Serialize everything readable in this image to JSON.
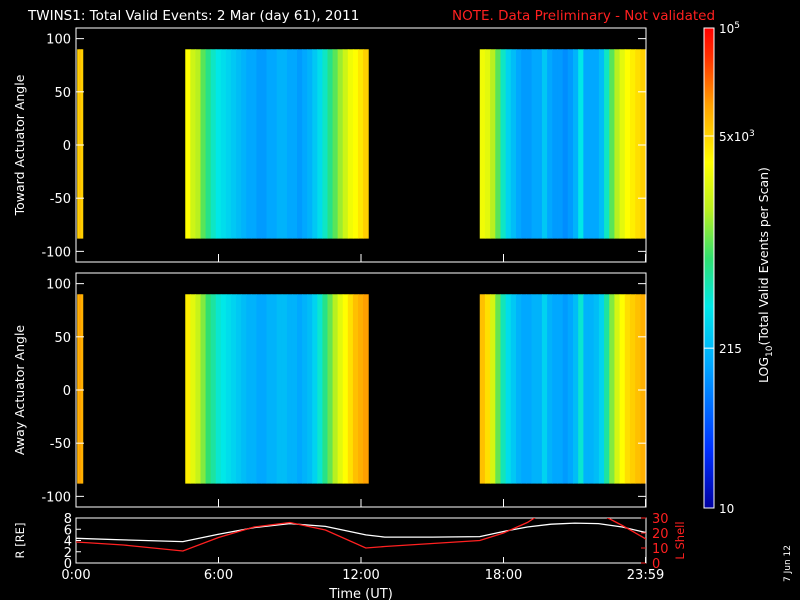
{
  "header": {
    "title": "TWINS1: Total Valid Events:  2 Mar (day  61), 2011",
    "note": "NOTE. Data Preliminary - Not validated"
  },
  "footer": {
    "date_stamp": "7 Jun 12"
  },
  "colors": {
    "note_red": "#ff2020",
    "lshell_red": "#ff2020",
    "r_line": "#ffffff",
    "background": "#000000"
  },
  "chart_data": [
    {
      "type": "heatmap",
      "id": "toward",
      "ylabel": "Toward Actuator Angle",
      "xlim": [
        0,
        24
      ],
      "ylim": [
        -110,
        110
      ],
      "yticks": [
        100,
        50,
        0,
        -50,
        -100
      ],
      "angle_range": [
        -88,
        90
      ],
      "time_blocks": [
        {
          "start": 0.05,
          "end": 0.28,
          "levels": [
            0.78,
            0.8,
            0.78
          ]
        },
        {
          "start": 4.6,
          "end": 12.3,
          "levels": [
            0.72,
            0.65,
            0.62,
            0.55,
            0.5,
            0.45,
            0.42,
            0.4,
            0.38,
            0.36,
            0.34,
            0.32,
            0.3,
            0.3,
            0.28,
            0.28,
            0.3,
            0.3,
            0.32,
            0.32,
            0.3,
            0.3,
            0.28,
            0.3,
            0.32,
            0.36,
            0.4,
            0.45,
            0.5,
            0.55,
            0.6,
            0.65,
            0.7,
            0.72,
            0.75,
            0.78
          ]
        },
        {
          "start": 17.0,
          "end": 23.98,
          "levels": [
            0.7,
            0.68,
            0.62,
            0.55,
            0.45,
            0.38,
            0.34,
            0.3,
            0.28,
            0.28,
            0.3,
            0.3,
            0.36,
            0.3,
            0.28,
            0.28,
            0.26,
            0.28,
            0.32,
            0.42,
            0.3,
            0.3,
            0.3,
            0.34,
            0.45,
            0.55,
            0.62,
            0.68,
            0.72,
            0.74,
            0.76,
            0.78
          ]
        }
      ]
    },
    {
      "type": "heatmap",
      "id": "away",
      "ylabel": "Away Actuator Angle",
      "xlim": [
        0,
        24
      ],
      "ylim": [
        -110,
        110
      ],
      "yticks": [
        100,
        50,
        0,
        -50,
        -100
      ],
      "angle_range": [
        -88,
        90
      ],
      "time_blocks": [
        {
          "start": 0.05,
          "end": 0.28,
          "levels": [
            0.82,
            0.84,
            0.82
          ]
        },
        {
          "start": 4.6,
          "end": 12.3,
          "levels": [
            0.74,
            0.68,
            0.64,
            0.58,
            0.52,
            0.48,
            0.44,
            0.42,
            0.4,
            0.38,
            0.36,
            0.34,
            0.32,
            0.32,
            0.3,
            0.3,
            0.32,
            0.32,
            0.34,
            0.34,
            0.32,
            0.32,
            0.3,
            0.32,
            0.34,
            0.38,
            0.44,
            0.5,
            0.56,
            0.62,
            0.68,
            0.72,
            0.76,
            0.8,
            0.82,
            0.84
          ]
        },
        {
          "start": 17.0,
          "end": 23.98,
          "levels": [
            0.8,
            0.76,
            0.66,
            0.56,
            0.46,
            0.4,
            0.36,
            0.32,
            0.3,
            0.3,
            0.32,
            0.32,
            0.38,
            0.32,
            0.3,
            0.3,
            0.28,
            0.3,
            0.34,
            0.44,
            0.32,
            0.32,
            0.34,
            0.38,
            0.48,
            0.58,
            0.66,
            0.72,
            0.76,
            0.78,
            0.8,
            0.82
          ]
        }
      ]
    },
    {
      "type": "line",
      "id": "orbit",
      "ylabel_left": "R [RE]",
      "ylabel_right": "L Shell",
      "xlabel": "Time (UT)",
      "xlim": [
        0,
        24
      ],
      "ylim_left": [
        0,
        8
      ],
      "ylim_right": [
        0,
        30
      ],
      "yticks_left": [
        0,
        2,
        4,
        6,
        8
      ],
      "yticks_right": [
        0,
        10,
        20,
        30
      ],
      "xtick_labels": [
        "0:00",
        "6:00",
        "12:00",
        "18:00",
        "23:59"
      ],
      "xticks": [
        0,
        6,
        12,
        18,
        23.98
      ],
      "series": [
        {
          "name": "R [RE]",
          "axis": "left",
          "x": [
            0,
            2,
            4.5,
            6,
            7.5,
            9,
            10.5,
            12.2,
            13,
            15,
            17,
            18,
            19,
            20,
            21,
            22,
            23,
            24
          ],
          "y": [
            4.4,
            4.1,
            3.8,
            5.1,
            6.3,
            7.0,
            6.5,
            5.0,
            4.6,
            4.6,
            4.7,
            5.6,
            6.4,
            6.9,
            7.1,
            7.0,
            6.4,
            5.4
          ]
        },
        {
          "name": "L Shell",
          "axis": "right",
          "x": [
            0,
            2,
            4.5,
            6,
            7.5,
            9,
            10.5,
            12.2,
            13,
            15,
            17,
            18,
            19,
            19.5,
            19.8
          ],
          "y": [
            14,
            12,
            8,
            17,
            24,
            27,
            22,
            10,
            11,
            13,
            15,
            20,
            27,
            32,
            34
          ],
          "x2": [
            21.9,
            22.4,
            23,
            24
          ],
          "y2": [
            34,
            30,
            25,
            16
          ]
        }
      ]
    },
    {
      "type": "colorbar",
      "label_log": "LOG",
      "label_sub": "10",
      "label_rest": "(Total Valid  Events per Scan)",
      "range": [
        10,
        100000
      ],
      "tick_labels": [
        {
          "frac": 1.0,
          "base": "10",
          "exp": "5"
        },
        {
          "frac": 0.775,
          "base": "5x10",
          "exp": "3"
        },
        {
          "frac": 0.333,
          "base": "215",
          "exp": ""
        },
        {
          "frac": 0.0,
          "base": "10",
          "exp": ""
        }
      ]
    }
  ]
}
